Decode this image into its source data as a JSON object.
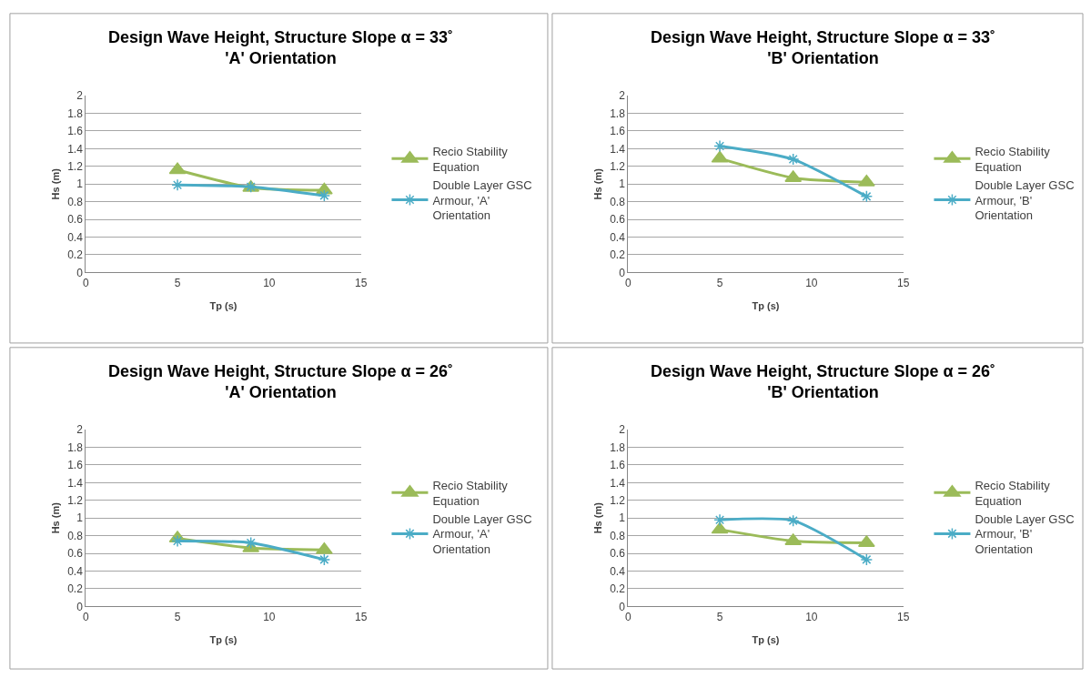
{
  "chart_data": [
    {
      "type": "line",
      "title": "Design Wave Height, Structure Slope α = 33˚\n'A' Orientation",
      "xlabel": "Tp (s)",
      "ylabel": "Hs (m)",
      "xlim": [
        0,
        15
      ],
      "xticks": [
        0,
        5,
        10,
        15
      ],
      "ylim": [
        0,
        2
      ],
      "yticks": [
        0,
        0.2,
        0.4,
        0.6,
        0.8,
        1,
        1.2,
        1.4,
        1.6,
        1.8,
        2
      ],
      "grid": "y",
      "legend": "right",
      "x": [
        5,
        9,
        13
      ],
      "series": [
        {
          "name": "Recio Stability Equation",
          "color": "#9bbb59",
          "marker": "triangle",
          "values": [
            1.16,
            0.96,
            0.93
          ]
        },
        {
          "name": "Double Layer GSC Armour, 'A' Orientation",
          "color": "#4bacc6",
          "marker": "cross",
          "values": [
            0.99,
            0.97,
            0.87
          ]
        }
      ]
    },
    {
      "type": "line",
      "title": "Design Wave Height, Structure Slope α = 33˚\n'B' Orientation",
      "xlabel": "Tp (s)",
      "ylabel": "Hs (m)",
      "xlim": [
        0,
        15
      ],
      "xticks": [
        0,
        5,
        10,
        15
      ],
      "ylim": [
        0,
        2
      ],
      "yticks": [
        0,
        0.2,
        0.4,
        0.6,
        0.8,
        1,
        1.2,
        1.4,
        1.6,
        1.8,
        2
      ],
      "grid": "y",
      "legend": "right",
      "x": [
        5,
        9,
        13
      ],
      "series": [
        {
          "name": "Recio Stability Equation",
          "color": "#9bbb59",
          "marker": "triangle",
          "values": [
            1.29,
            1.07,
            1.02
          ]
        },
        {
          "name": "Double Layer GSC Armour, 'B' Orientation",
          "color": "#4bacc6",
          "marker": "cross",
          "values": [
            1.43,
            1.28,
            0.86
          ]
        }
      ]
    },
    {
      "type": "line",
      "title": "Design Wave Height, Structure Slope α = 26˚\n'A' Orientation",
      "xlabel": "Tp (s)",
      "ylabel": "Hs (m)",
      "xlim": [
        0,
        15
      ],
      "xticks": [
        0,
        5,
        10,
        15
      ],
      "ylim": [
        0,
        2
      ],
      "yticks": [
        0,
        0.2,
        0.4,
        0.6,
        0.8,
        1,
        1.2,
        1.4,
        1.6,
        1.8,
        2
      ],
      "grid": "y",
      "legend": "right",
      "x": [
        5,
        9,
        13
      ],
      "series": [
        {
          "name": "Recio Stability Equation",
          "color": "#9bbb59",
          "marker": "triangle",
          "values": [
            0.77,
            0.66,
            0.64
          ]
        },
        {
          "name": "Double Layer GSC Armour, 'A' Orientation",
          "color": "#4bacc6",
          "marker": "cross",
          "values": [
            0.74,
            0.72,
            0.53
          ]
        }
      ]
    },
    {
      "type": "line",
      "title": "Design Wave Height, Structure Slope α = 26˚\n'B' Orientation",
      "xlabel": "Tp (s)",
      "ylabel": "Hs (m)",
      "xlim": [
        0,
        15
      ],
      "xticks": [
        0,
        5,
        10,
        15
      ],
      "ylim": [
        0,
        2
      ],
      "yticks": [
        0,
        0.2,
        0.4,
        0.6,
        0.8,
        1,
        1.2,
        1.4,
        1.6,
        1.8,
        2
      ],
      "grid": "y",
      "legend": "right",
      "x": [
        5,
        9,
        13
      ],
      "series": [
        {
          "name": "Recio Stability Equation",
          "color": "#9bbb59",
          "marker": "triangle",
          "values": [
            0.87,
            0.74,
            0.72
          ]
        },
        {
          "name": "Double Layer GSC Armour, 'B' Orientation",
          "color": "#4bacc6",
          "marker": "cross",
          "values": [
            0.98,
            0.97,
            0.53
          ]
        }
      ]
    }
  ]
}
